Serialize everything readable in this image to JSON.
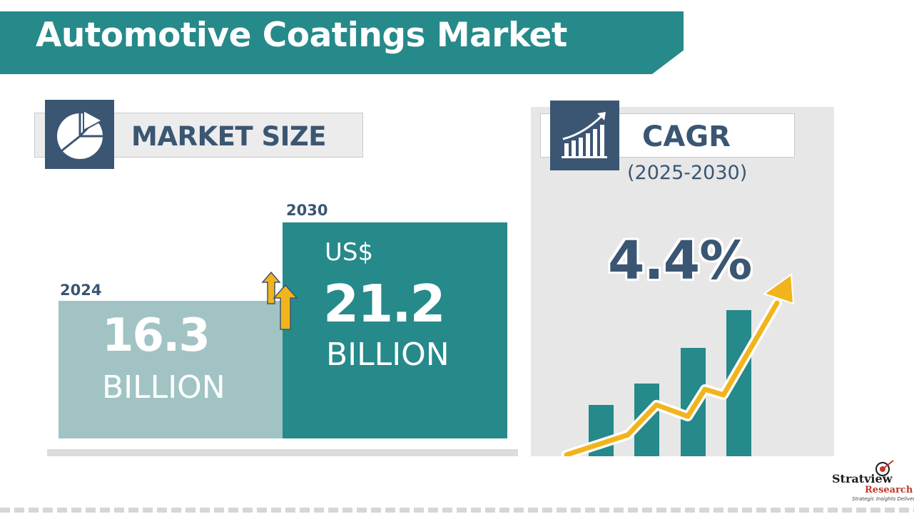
{
  "title": "Automotive Coatings Market",
  "market_size": {
    "heading": "MARKET SIZE",
    "icon": "pie-chart-icon",
    "start": {
      "year": "2024",
      "value": "16.3",
      "unit": "BILLION"
    },
    "end": {
      "year": "2030",
      "currency": "US$",
      "value": "21.2",
      "unit": "BILLION"
    }
  },
  "cagr": {
    "heading": "CAGR",
    "icon": "growth-bar-chart-icon",
    "period": "(2025-2030)",
    "value": "4.4%"
  },
  "logo": {
    "name": "Stratview",
    "sub": "Research",
    "tagline": "Strategic Insights Delivered"
  },
  "colors": {
    "teal": "#26898a",
    "light_teal": "#a1c3c3",
    "navy": "#3a5673",
    "accent_yellow": "#f2b41c"
  },
  "chart_data": {
    "type": "bar",
    "categories": [
      "2024",
      "2030"
    ],
    "values": [
      16.3,
      21.2
    ],
    "title": "MARKET SIZE",
    "ylabel": "",
    "xlabel": ""
  }
}
